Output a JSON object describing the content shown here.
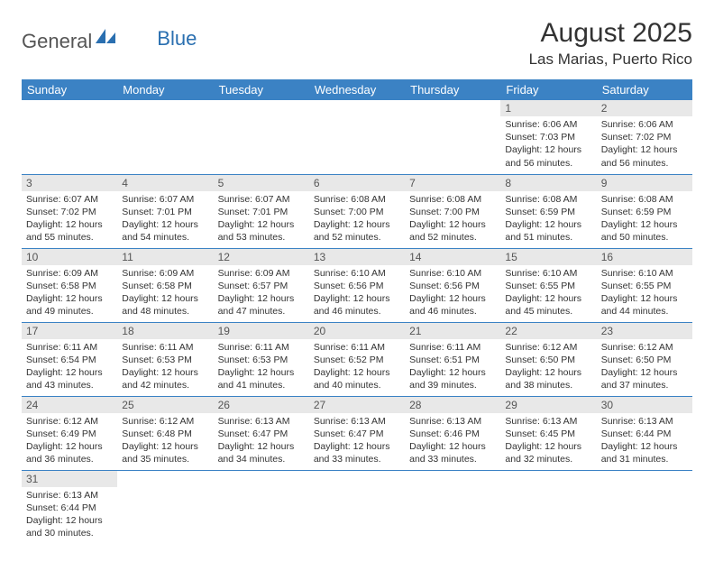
{
  "logo": {
    "text_general": "General",
    "text_blue": "Blue"
  },
  "header": {
    "month_title": "August 2025",
    "location": "Las Marias, Puerto Rico"
  },
  "colors": {
    "header_bg": "#3b82c4",
    "header_text": "#ffffff",
    "daynum_bg": "#e8e8e8",
    "border": "#3b82c4"
  },
  "days_of_week": [
    "Sunday",
    "Monday",
    "Tuesday",
    "Wednesday",
    "Thursday",
    "Friday",
    "Saturday"
  ],
  "weeks": [
    [
      null,
      null,
      null,
      null,
      null,
      {
        "n": "1",
        "sr": "6:06 AM",
        "ss": "7:03 PM",
        "dl": "12 hours and 56 minutes."
      },
      {
        "n": "2",
        "sr": "6:06 AM",
        "ss": "7:02 PM",
        "dl": "12 hours and 56 minutes."
      }
    ],
    [
      {
        "n": "3",
        "sr": "6:07 AM",
        "ss": "7:02 PM",
        "dl": "12 hours and 55 minutes."
      },
      {
        "n": "4",
        "sr": "6:07 AM",
        "ss": "7:01 PM",
        "dl": "12 hours and 54 minutes."
      },
      {
        "n": "5",
        "sr": "6:07 AM",
        "ss": "7:01 PM",
        "dl": "12 hours and 53 minutes."
      },
      {
        "n": "6",
        "sr": "6:08 AM",
        "ss": "7:00 PM",
        "dl": "12 hours and 52 minutes."
      },
      {
        "n": "7",
        "sr": "6:08 AM",
        "ss": "7:00 PM",
        "dl": "12 hours and 52 minutes."
      },
      {
        "n": "8",
        "sr": "6:08 AM",
        "ss": "6:59 PM",
        "dl": "12 hours and 51 minutes."
      },
      {
        "n": "9",
        "sr": "6:08 AM",
        "ss": "6:59 PM",
        "dl": "12 hours and 50 minutes."
      }
    ],
    [
      {
        "n": "10",
        "sr": "6:09 AM",
        "ss": "6:58 PM",
        "dl": "12 hours and 49 minutes."
      },
      {
        "n": "11",
        "sr": "6:09 AM",
        "ss": "6:58 PM",
        "dl": "12 hours and 48 minutes."
      },
      {
        "n": "12",
        "sr": "6:09 AM",
        "ss": "6:57 PM",
        "dl": "12 hours and 47 minutes."
      },
      {
        "n": "13",
        "sr": "6:10 AM",
        "ss": "6:56 PM",
        "dl": "12 hours and 46 minutes."
      },
      {
        "n": "14",
        "sr": "6:10 AM",
        "ss": "6:56 PM",
        "dl": "12 hours and 46 minutes."
      },
      {
        "n": "15",
        "sr": "6:10 AM",
        "ss": "6:55 PM",
        "dl": "12 hours and 45 minutes."
      },
      {
        "n": "16",
        "sr": "6:10 AM",
        "ss": "6:55 PM",
        "dl": "12 hours and 44 minutes."
      }
    ],
    [
      {
        "n": "17",
        "sr": "6:11 AM",
        "ss": "6:54 PM",
        "dl": "12 hours and 43 minutes."
      },
      {
        "n": "18",
        "sr": "6:11 AM",
        "ss": "6:53 PM",
        "dl": "12 hours and 42 minutes."
      },
      {
        "n": "19",
        "sr": "6:11 AM",
        "ss": "6:53 PM",
        "dl": "12 hours and 41 minutes."
      },
      {
        "n": "20",
        "sr": "6:11 AM",
        "ss": "6:52 PM",
        "dl": "12 hours and 40 minutes."
      },
      {
        "n": "21",
        "sr": "6:11 AM",
        "ss": "6:51 PM",
        "dl": "12 hours and 39 minutes."
      },
      {
        "n": "22",
        "sr": "6:12 AM",
        "ss": "6:50 PM",
        "dl": "12 hours and 38 minutes."
      },
      {
        "n": "23",
        "sr": "6:12 AM",
        "ss": "6:50 PM",
        "dl": "12 hours and 37 minutes."
      }
    ],
    [
      {
        "n": "24",
        "sr": "6:12 AM",
        "ss": "6:49 PM",
        "dl": "12 hours and 36 minutes."
      },
      {
        "n": "25",
        "sr": "6:12 AM",
        "ss": "6:48 PM",
        "dl": "12 hours and 35 minutes."
      },
      {
        "n": "26",
        "sr": "6:13 AM",
        "ss": "6:47 PM",
        "dl": "12 hours and 34 minutes."
      },
      {
        "n": "27",
        "sr": "6:13 AM",
        "ss": "6:47 PM",
        "dl": "12 hours and 33 minutes."
      },
      {
        "n": "28",
        "sr": "6:13 AM",
        "ss": "6:46 PM",
        "dl": "12 hours and 33 minutes."
      },
      {
        "n": "29",
        "sr": "6:13 AM",
        "ss": "6:45 PM",
        "dl": "12 hours and 32 minutes."
      },
      {
        "n": "30",
        "sr": "6:13 AM",
        "ss": "6:44 PM",
        "dl": "12 hours and 31 minutes."
      }
    ],
    [
      {
        "n": "31",
        "sr": "6:13 AM",
        "ss": "6:44 PM",
        "dl": "12 hours and 30 minutes."
      },
      null,
      null,
      null,
      null,
      null,
      null
    ]
  ],
  "labels": {
    "sunrise": "Sunrise:",
    "sunset": "Sunset:",
    "daylight": "Daylight:"
  }
}
